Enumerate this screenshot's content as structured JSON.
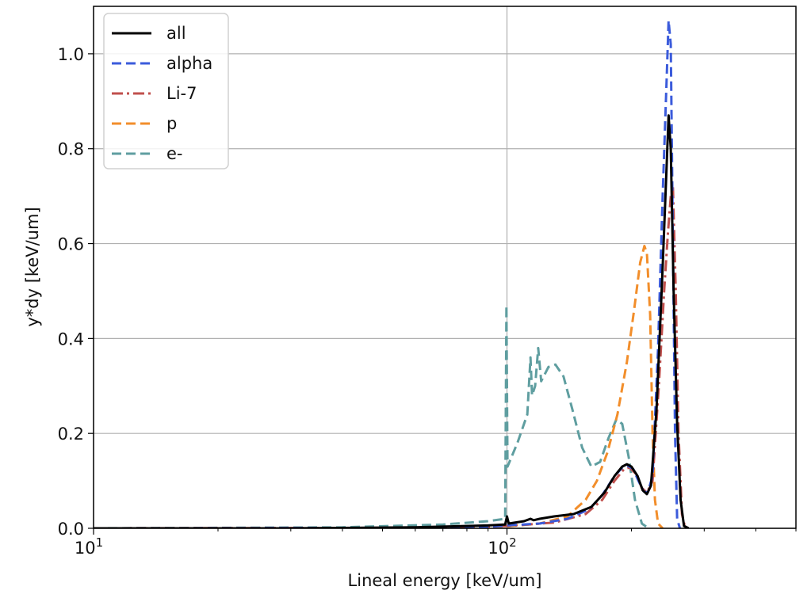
{
  "chart_data": {
    "type": "line",
    "title": "",
    "xlabel": "Lineal energy [keV/um]",
    "ylabel": "y*dy [keV/um]",
    "x_scale": "log",
    "xlim": [
      10,
      500
    ],
    "ylim": [
      0,
      1.1
    ],
    "grid": true,
    "legend_position": "upper-left",
    "xticks": [
      {
        "value": 10,
        "label": "10",
        "exp": "1"
      },
      {
        "value": 100,
        "label": "10",
        "exp": "2"
      }
    ],
    "yticks": [
      {
        "value": 0.0,
        "label": "0.0"
      },
      {
        "value": 0.2,
        "label": "0.2"
      },
      {
        "value": 0.4,
        "label": "0.4"
      },
      {
        "value": 0.6,
        "label": "0.6"
      },
      {
        "value": 0.8,
        "label": "0.8"
      },
      {
        "value": 1.0,
        "label": "1.0"
      }
    ],
    "series": [
      {
        "name": "all",
        "color": "#000000",
        "dash": "solid",
        "points": [
          [
            10,
            0
          ],
          [
            30,
            0
          ],
          [
            60,
            0.002
          ],
          [
            90,
            0.006
          ],
          [
            99,
            0.008
          ],
          [
            100,
            0.025
          ],
          [
            101,
            0.01
          ],
          [
            110,
            0.015
          ],
          [
            114,
            0.02
          ],
          [
            116,
            0.017
          ],
          [
            120,
            0.02
          ],
          [
            130,
            0.025
          ],
          [
            145,
            0.03
          ],
          [
            160,
            0.045
          ],
          [
            172,
            0.075
          ],
          [
            182,
            0.11
          ],
          [
            190,
            0.13
          ],
          [
            195,
            0.135
          ],
          [
            200,
            0.13
          ],
          [
            207,
            0.11
          ],
          [
            213,
            0.08
          ],
          [
            218,
            0.072
          ],
          [
            223,
            0.09
          ],
          [
            230,
            0.25
          ],
          [
            238,
            0.55
          ],
          [
            243,
            0.75
          ],
          [
            246,
            0.87
          ],
          [
            249,
            0.8
          ],
          [
            253,
            0.5
          ],
          [
            258,
            0.22
          ],
          [
            263,
            0.06
          ],
          [
            268,
            0.005
          ],
          [
            275,
            0
          ]
        ]
      },
      {
        "name": "alpha",
        "color": "#3b5bdb",
        "dash": "dashed",
        "points": [
          [
            10,
            0
          ],
          [
            60,
            0.001
          ],
          [
            90,
            0.003
          ],
          [
            100,
            0.006
          ],
          [
            120,
            0.01
          ],
          [
            140,
            0.02
          ],
          [
            158,
            0.04
          ],
          [
            170,
            0.07
          ],
          [
            182,
            0.11
          ],
          [
            190,
            0.128
          ],
          [
            196,
            0.132
          ],
          [
            202,
            0.125
          ],
          [
            208,
            0.1
          ],
          [
            214,
            0.078
          ],
          [
            219,
            0.075
          ],
          [
            225,
            0.11
          ],
          [
            232,
            0.38
          ],
          [
            238,
            0.7
          ],
          [
            243,
            0.93
          ],
          [
            246,
            1.07
          ],
          [
            249,
            1.02
          ],
          [
            252,
            0.6
          ],
          [
            255,
            0.2
          ],
          [
            258,
            0.02
          ],
          [
            262,
            0
          ]
        ]
      },
      {
        "name": "Li-7",
        "color": "#c0504d",
        "dash": "dashdot",
        "points": [
          [
            10,
            0
          ],
          [
            60,
            0.001
          ],
          [
            100,
            0.005
          ],
          [
            130,
            0.012
          ],
          [
            155,
            0.03
          ],
          [
            170,
            0.06
          ],
          [
            182,
            0.1
          ],
          [
            192,
            0.125
          ],
          [
            198,
            0.128
          ],
          [
            205,
            0.115
          ],
          [
            212,
            0.085
          ],
          [
            218,
            0.075
          ],
          [
            225,
            0.1
          ],
          [
            233,
            0.3
          ],
          [
            240,
            0.5
          ],
          [
            245,
            0.62
          ],
          [
            249,
            0.7
          ],
          [
            252,
            0.72
          ],
          [
            256,
            0.5
          ],
          [
            260,
            0.2
          ],
          [
            265,
            0.03
          ],
          [
            270,
            0
          ]
        ]
      },
      {
        "name": "p",
        "color": "#f28e2b",
        "dash": "dashed",
        "points": [
          [
            10,
            0
          ],
          [
            60,
            0.001
          ],
          [
            100,
            0.004
          ],
          [
            120,
            0.01
          ],
          [
            140,
            0.025
          ],
          [
            155,
            0.06
          ],
          [
            165,
            0.1
          ],
          [
            175,
            0.16
          ],
          [
            185,
            0.24
          ],
          [
            195,
            0.35
          ],
          [
            203,
            0.46
          ],
          [
            210,
            0.56
          ],
          [
            215,
            0.595
          ],
          [
            218,
            0.58
          ],
          [
            222,
            0.45
          ],
          [
            225,
            0.2
          ],
          [
            228,
            0.06
          ],
          [
            232,
            0.01
          ],
          [
            238,
            0
          ]
        ]
      },
      {
        "name": "e-",
        "color": "#5f9ea0",
        "dash": "dashed",
        "points": [
          [
            10,
            0
          ],
          [
            40,
            0.002
          ],
          [
            70,
            0.008
          ],
          [
            90,
            0.015
          ],
          [
            99,
            0.02
          ],
          [
            99.7,
            0.47
          ],
          [
            100.3,
            0.13
          ],
          [
            106,
            0.18
          ],
          [
            112,
            0.24
          ],
          [
            114,
            0.36
          ],
          [
            115,
            0.28
          ],
          [
            117,
            0.3
          ],
          [
            119,
            0.38
          ],
          [
            121,
            0.31
          ],
          [
            126,
            0.34
          ],
          [
            131,
            0.345
          ],
          [
            137,
            0.32
          ],
          [
            144,
            0.25
          ],
          [
            152,
            0.17
          ],
          [
            160,
            0.13
          ],
          [
            168,
            0.14
          ],
          [
            176,
            0.19
          ],
          [
            184,
            0.23
          ],
          [
            190,
            0.22
          ],
          [
            197,
            0.15
          ],
          [
            204,
            0.06
          ],
          [
            212,
            0.01
          ],
          [
            220,
            0
          ]
        ]
      }
    ]
  }
}
